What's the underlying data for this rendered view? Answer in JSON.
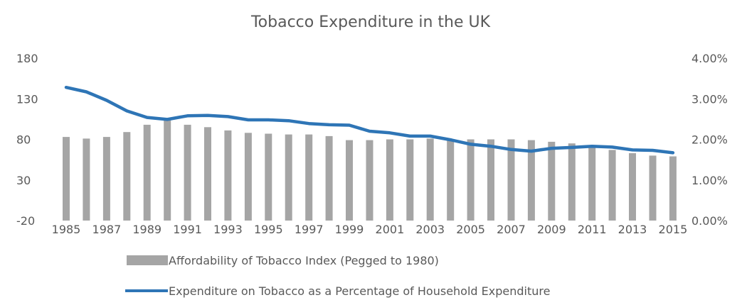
{
  "chart_data": {
    "type": "bar+line",
    "title": "Tobacco Expenditure in the UK",
    "categories": [
      1985,
      1986,
      1987,
      1988,
      1989,
      1990,
      1991,
      1992,
      1993,
      1994,
      1995,
      1996,
      1997,
      1998,
      1999,
      2000,
      2001,
      2002,
      2003,
      2004,
      2005,
      2006,
      2007,
      2008,
      2009,
      2010,
      2011,
      2012,
      2013,
      2014,
      2015
    ],
    "x_tick_labels": [
      "1985",
      "1987",
      "1989",
      "1991",
      "1993",
      "1995",
      "1997",
      "1999",
      "2001",
      "2003",
      "2005",
      "2007",
      "2009",
      "2011",
      "2013",
      "2015"
    ],
    "y_left": {
      "min": -20,
      "max": 180,
      "ticks": [
        "180",
        "130",
        "80",
        "30",
        "-20"
      ]
    },
    "y_right": {
      "min": 0,
      "max": 0.04,
      "ticks": [
        "4.00%",
        "3.00%",
        "2.00%",
        "1.00%",
        "0.00%"
      ]
    },
    "grid": false,
    "legend_position": "bottom",
    "series": [
      {
        "name": "Affordability of Tobacco Index (Pegged to 1980)",
        "type": "bar",
        "axis": "left",
        "color": "#A5A5A5",
        "values": [
          83,
          81,
          83,
          89,
          98,
          104,
          98,
          95,
          91,
          88,
          87,
          86,
          86,
          84,
          79,
          79,
          80,
          80,
          81,
          79,
          80,
          80,
          80,
          79,
          77,
          75,
          70,
          67,
          63,
          60,
          59
        ]
      },
      {
        "name": "Expenditure on Tobacco as a Percentage of Household Expenditure",
        "type": "line",
        "axis": "right",
        "color": "#2E75B6",
        "values": [
          3.28,
          3.17,
          2.96,
          2.7,
          2.54,
          2.49,
          2.58,
          2.59,
          2.56,
          2.48,
          2.48,
          2.46,
          2.39,
          2.36,
          2.35,
          2.2,
          2.16,
          2.08,
          2.08,
          1.99,
          1.88,
          1.83,
          1.75,
          1.71,
          1.78,
          1.8,
          1.83,
          1.81,
          1.74,
          1.73,
          1.67
        ]
      }
    ]
  }
}
